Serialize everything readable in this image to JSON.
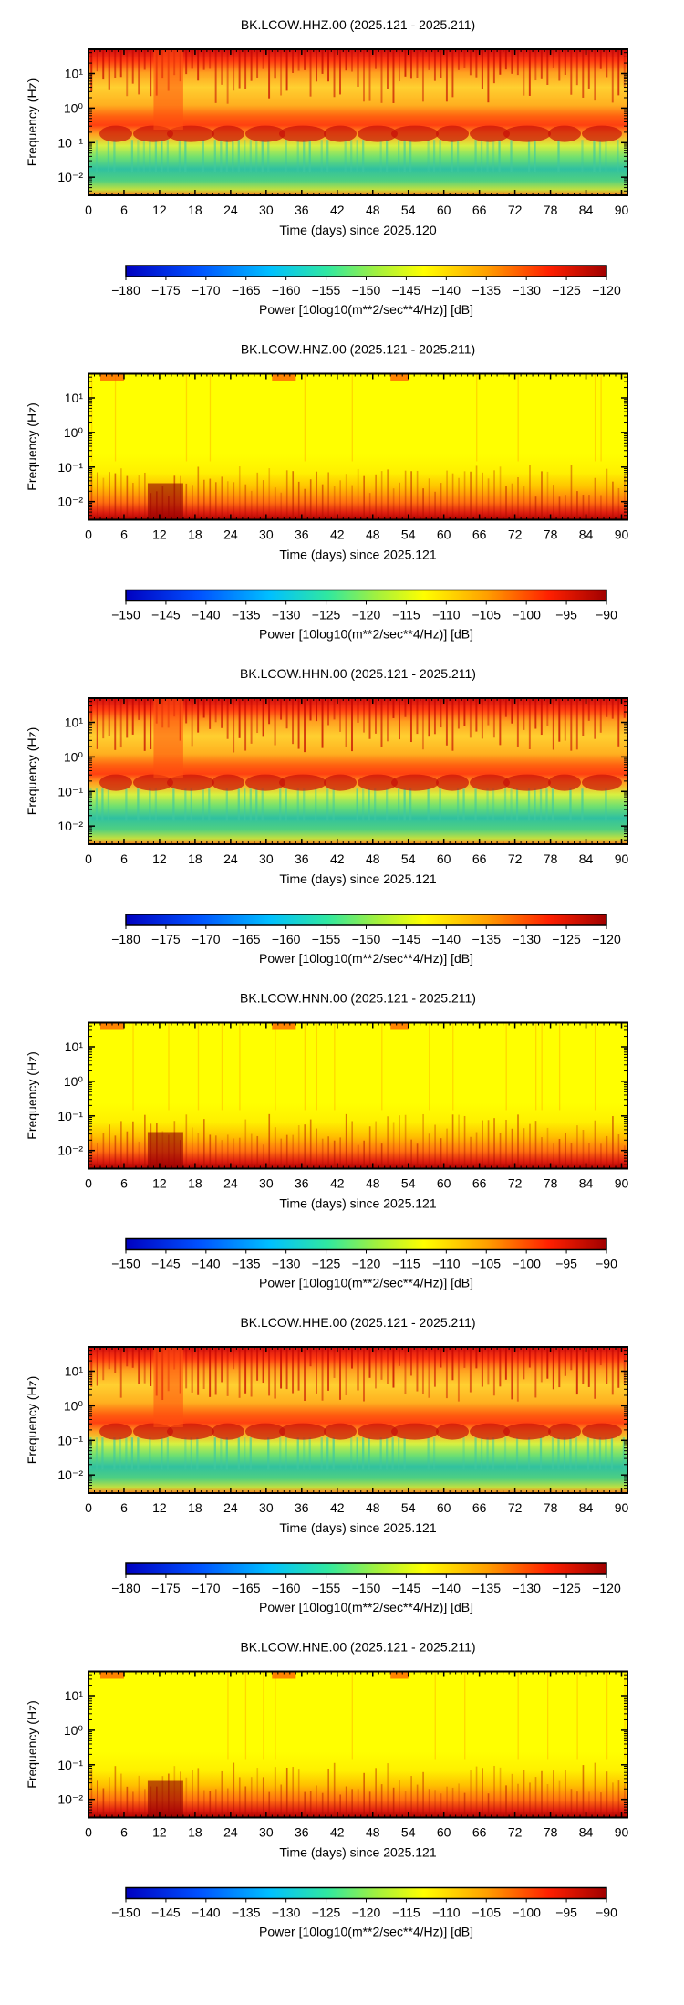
{
  "panels": [
    {
      "title": "BK.LCOW.HHZ.00 (2025.121 - 2025.211)",
      "xlabel": "Time (days) since 2025.120",
      "ylabel": "Frequency (Hz)",
      "colorbar_label": "Power [10log10(m**2/sec**4/Hz)] [dB]",
      "colorbar_ticks": [
        "−180",
        "−175",
        "−170",
        "−165",
        "−160",
        "−155",
        "−150",
        "−145",
        "−140",
        "−135",
        "−130",
        "−125",
        "−120"
      ],
      "x_ticks": [
        "0",
        "6",
        "12",
        "18",
        "24",
        "30",
        "36",
        "42",
        "48",
        "54",
        "60",
        "66",
        "72",
        "78",
        "84",
        "90"
      ],
      "y_ticks": [
        "10¹",
        "10⁰",
        "10⁻¹",
        "10⁻²"
      ],
      "style": "noisy"
    },
    {
      "title": "BK.LCOW.HNZ.00 (2025.121 - 2025.211)",
      "xlabel": "Time (days) since 2025.121",
      "ylabel": "Frequency (Hz)",
      "colorbar_label": "Power [10log10(m**2/sec**4/Hz)] [dB]",
      "colorbar_ticks": [
        "−150",
        "−145",
        "−140",
        "−135",
        "−130",
        "−125",
        "−120",
        "−115",
        "−110",
        "−105",
        "−100",
        "−95",
        "−90"
      ],
      "x_ticks": [
        "0",
        "6",
        "12",
        "18",
        "24",
        "30",
        "36",
        "42",
        "48",
        "54",
        "60",
        "66",
        "72",
        "78",
        "84",
        "90"
      ],
      "y_ticks": [
        "10¹",
        "10⁰",
        "10⁻¹",
        "10⁻²"
      ],
      "style": "quiet"
    },
    {
      "title": "BK.LCOW.HHN.00 (2025.121 - 2025.211)",
      "xlabel": "Time (days) since 2025.121",
      "ylabel": "Frequency (Hz)",
      "colorbar_label": "Power [10log10(m**2/sec**4/Hz)] [dB]",
      "colorbar_ticks": [
        "−180",
        "−175",
        "−170",
        "−165",
        "−160",
        "−155",
        "−150",
        "−145",
        "−140",
        "−135",
        "−130",
        "−125",
        "−120"
      ],
      "x_ticks": [
        "0",
        "6",
        "12",
        "18",
        "24",
        "30",
        "36",
        "42",
        "48",
        "54",
        "60",
        "66",
        "72",
        "78",
        "84",
        "90"
      ],
      "y_ticks": [
        "10¹",
        "10⁰",
        "10⁻¹",
        "10⁻²"
      ],
      "style": "noisy"
    },
    {
      "title": "BK.LCOW.HNN.00 (2025.121 - 2025.211)",
      "xlabel": "Time (days) since 2025.121",
      "ylabel": "Frequency (Hz)",
      "colorbar_label": "Power [10log10(m**2/sec**4/Hz)] [dB]",
      "colorbar_ticks": [
        "−150",
        "−145",
        "−140",
        "−135",
        "−130",
        "−125",
        "−120",
        "−115",
        "−110",
        "−105",
        "−100",
        "−95",
        "−90"
      ],
      "x_ticks": [
        "0",
        "6",
        "12",
        "18",
        "24",
        "30",
        "36",
        "42",
        "48",
        "54",
        "60",
        "66",
        "72",
        "78",
        "84",
        "90"
      ],
      "y_ticks": [
        "10¹",
        "10⁰",
        "10⁻¹",
        "10⁻²"
      ],
      "style": "quiet"
    },
    {
      "title": "BK.LCOW.HHE.00 (2025.121 - 2025.211)",
      "xlabel": "Time (days) since 2025.121",
      "ylabel": "Frequency (Hz)",
      "colorbar_label": "Power [10log10(m**2/sec**4/Hz)] [dB]",
      "colorbar_ticks": [
        "−180",
        "−175",
        "−170",
        "−165",
        "−160",
        "−155",
        "−150",
        "−145",
        "−140",
        "−135",
        "−130",
        "−125",
        "−120"
      ],
      "x_ticks": [
        "0",
        "6",
        "12",
        "18",
        "24",
        "30",
        "36",
        "42",
        "48",
        "54",
        "60",
        "66",
        "72",
        "78",
        "84",
        "90"
      ],
      "y_ticks": [
        "10¹",
        "10⁰",
        "10⁻¹",
        "10⁻²"
      ],
      "style": "noisy"
    },
    {
      "title": "BK.LCOW.HNE.00 (2025.121 - 2025.211)",
      "xlabel": "Time (days) since 2025.121",
      "ylabel": "Frequency (Hz)",
      "colorbar_label": "Power [10log10(m**2/sec**4/Hz)] [dB]",
      "colorbar_ticks": [
        "−150",
        "−145",
        "−140",
        "−135",
        "−130",
        "−125",
        "−120",
        "−115",
        "−110",
        "−105",
        "−100",
        "−95",
        "−90"
      ],
      "x_ticks": [
        "0",
        "6",
        "12",
        "18",
        "24",
        "30",
        "36",
        "42",
        "48",
        "54",
        "60",
        "66",
        "72",
        "78",
        "84",
        "90"
      ],
      "y_ticks": [
        "10¹",
        "10⁰",
        "10⁻¹",
        "10⁻²"
      ],
      "style": "quiet"
    }
  ],
  "chart_data": [
    {
      "type": "heatmap",
      "title": "BK.LCOW.HHZ.00 (2025.121 - 2025.211)",
      "xlabel": "Time (days) since 2025.120",
      "ylabel": "Frequency (Hz)",
      "xlim": [
        0,
        91
      ],
      "ylim": [
        0.003,
        50
      ],
      "y_scale": "log",
      "colorbar": {
        "label": "Power [10log10(m**2/sec**4/Hz)] [dB]",
        "range": [
          -180,
          -120
        ]
      }
    },
    {
      "type": "heatmap",
      "title": "BK.LCOW.HNZ.00 (2025.121 - 2025.211)",
      "xlabel": "Time (days) since 2025.121",
      "ylabel": "Frequency (Hz)",
      "xlim": [
        0,
        91
      ],
      "ylim": [
        0.003,
        50
      ],
      "y_scale": "log",
      "colorbar": {
        "label": "Power [10log10(m**2/sec**4/Hz)] [dB]",
        "range": [
          -150,
          -90
        ]
      }
    },
    {
      "type": "heatmap",
      "title": "BK.LCOW.HHN.00 (2025.121 - 2025.211)",
      "xlabel": "Time (days) since 2025.121",
      "ylabel": "Frequency (Hz)",
      "xlim": [
        0,
        91
      ],
      "ylim": [
        0.003,
        50
      ],
      "y_scale": "log",
      "colorbar": {
        "label": "Power [10log10(m**2/sec**4/Hz)] [dB]",
        "range": [
          -180,
          -120
        ]
      }
    },
    {
      "type": "heatmap",
      "title": "BK.LCOW.HNN.00 (2025.121 - 2025.211)",
      "xlabel": "Time (days) since 2025.121",
      "ylabel": "Frequency (Hz)",
      "xlim": [
        0,
        91
      ],
      "ylim": [
        0.003,
        50
      ],
      "y_scale": "log",
      "colorbar": {
        "label": "Power [10log10(m**2/sec**4/Hz)] [dB]",
        "range": [
          -150,
          -90
        ]
      }
    },
    {
      "type": "heatmap",
      "title": "BK.LCOW.HHE.00 (2025.121 - 2025.211)",
      "xlabel": "Time (days) since 2025.121",
      "ylabel": "Frequency (Hz)",
      "xlim": [
        0,
        91
      ],
      "ylim": [
        0.003,
        50
      ],
      "y_scale": "log",
      "colorbar": {
        "label": "Power [10log10(m**2/sec**4/Hz)] [dB]",
        "range": [
          -180,
          -120
        ]
      }
    },
    {
      "type": "heatmap",
      "title": "BK.LCOW.HNE.00 (2025.121 - 2025.211)",
      "xlabel": "Time (days) since 2025.121",
      "ylabel": "Frequency (Hz)",
      "xlim": [
        0,
        91
      ],
      "ylim": [
        0.003,
        50
      ],
      "y_scale": "log",
      "colorbar": {
        "label": "Power [10log10(m**2/sec**4/Hz)] [dB]",
        "range": [
          -150,
          -90
        ]
      }
    }
  ]
}
